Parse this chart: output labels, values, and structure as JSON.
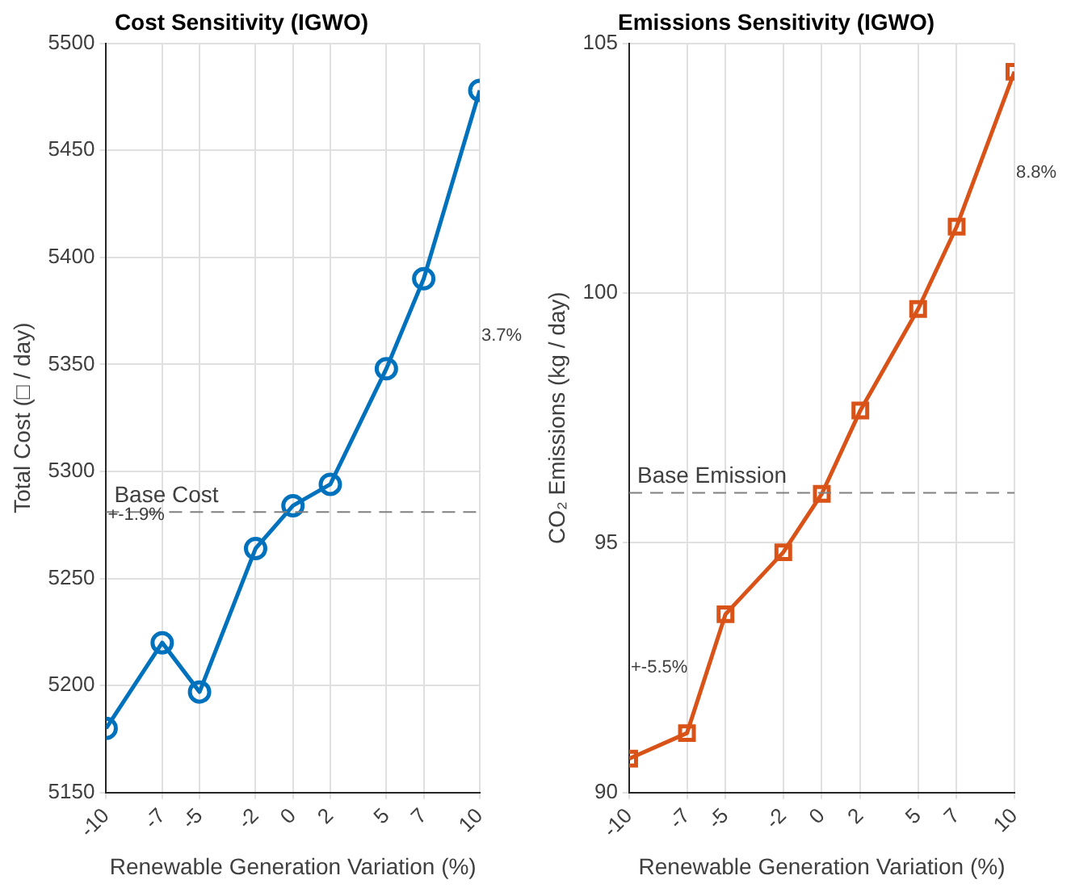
{
  "chart_data": [
    {
      "type": "line",
      "title": "Cost Sensitivity (IGWO)",
      "xlabel": "Renewable Generation Variation (%)",
      "ylabel": "Total Cost (□ / day)",
      "x": [
        -10,
        -7,
        -5,
        -2,
        0,
        2,
        5,
        7,
        10
      ],
      "series": [
        {
          "color": "#0072bd",
          "values": [
            5180,
            5220,
            5197,
            5264,
            5284,
            5294,
            5348,
            5390,
            5478
          ]
        }
      ],
      "xlim": [
        -10,
        10
      ],
      "xticks": [
        -10,
        -7,
        -5,
        -2,
        0,
        2,
        5,
        7,
        10
      ],
      "ylim": [
        5150,
        5500
      ],
      "yticks": [
        5150,
        5200,
        5250,
        5300,
        5350,
        5400,
        5450,
        5500
      ],
      "ref_lines": [
        {
          "axis": "y",
          "value": 5281,
          "label": "Base Cost",
          "color": "#808080",
          "line_style": "dashed"
        }
      ],
      "annotations": [
        "+-1.9%",
        "3.7%"
      ],
      "marker": "circle",
      "line_style": "solid",
      "grid": true,
      "legend": false
    },
    {
      "type": "line",
      "title": "Emissions Sensitivity (IGWO)",
      "xlabel": "Renewable Generation Variation (%)",
      "ylabel": "CO₂ Emissions (kg / day)",
      "x": [
        -10,
        -7,
        -5,
        -2,
        0,
        2,
        5,
        7,
        10
      ],
      "series": [
        {
          "color": "#d95319",
          "values": [
            90.68,
            91.19,
            93.57,
            94.81,
            95.98,
            97.65,
            99.68,
            101.33,
            104.43
          ]
        }
      ],
      "xlim": [
        -10,
        10
      ],
      "xticks": [
        -10,
        -7,
        -5,
        -2,
        0,
        2,
        5,
        7,
        10
      ],
      "ylim": [
        90,
        105
      ],
      "yticks": [
        90,
        95,
        100,
        105
      ],
      "ref_lines": [
        {
          "axis": "y",
          "value": 96,
          "label": "Base Emission",
          "color": "#808080",
          "line_style": "dashed"
        }
      ],
      "annotations": [
        "+-5.5%",
        "8.8%"
      ],
      "marker": "square",
      "line_style": "solid",
      "grid": true,
      "legend": false
    }
  ]
}
